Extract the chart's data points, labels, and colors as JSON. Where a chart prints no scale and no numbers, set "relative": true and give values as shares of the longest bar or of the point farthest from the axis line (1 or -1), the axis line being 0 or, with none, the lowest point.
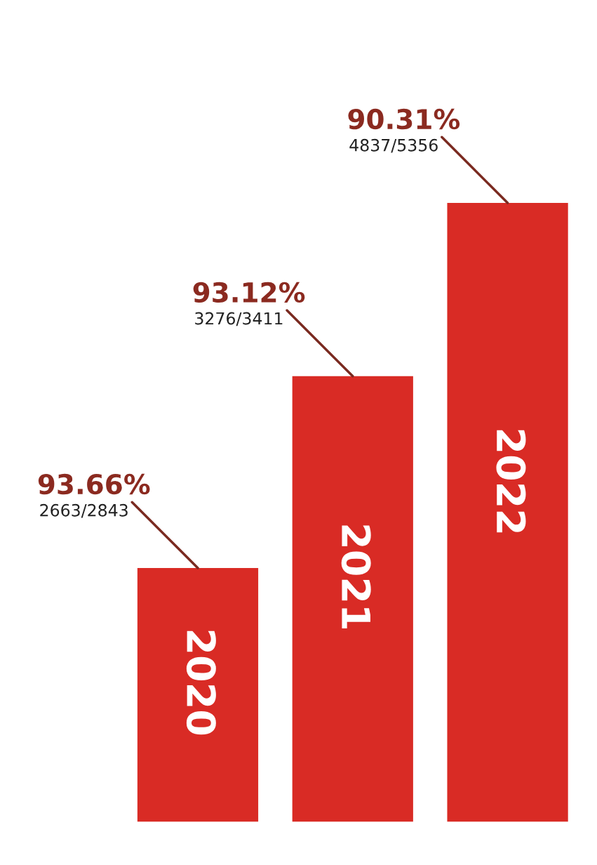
{
  "chart_data": {
    "type": "bar",
    "relative": true,
    "categories": [
      "2020",
      "2021",
      "2022"
    ],
    "values": [
      0.41,
      0.72,
      1
    ],
    "color": "#d92b25",
    "annotations": [
      {
        "text": "93.66%",
        "x": "2020",
        "y": 0.41
      },
      {
        "text": "2663/2843",
        "x": "2020",
        "y": 0.41
      },
      {
        "text": "93.12%",
        "x": "2021",
        "y": 0.72
      },
      {
        "text": "3276/3411",
        "x": "2021",
        "y": 0.72
      },
      {
        "text": "90.31%",
        "x": "2022",
        "y": 1
      },
      {
        "text": "4837/5356",
        "x": "2022",
        "y": 1
      }
    ]
  }
}
